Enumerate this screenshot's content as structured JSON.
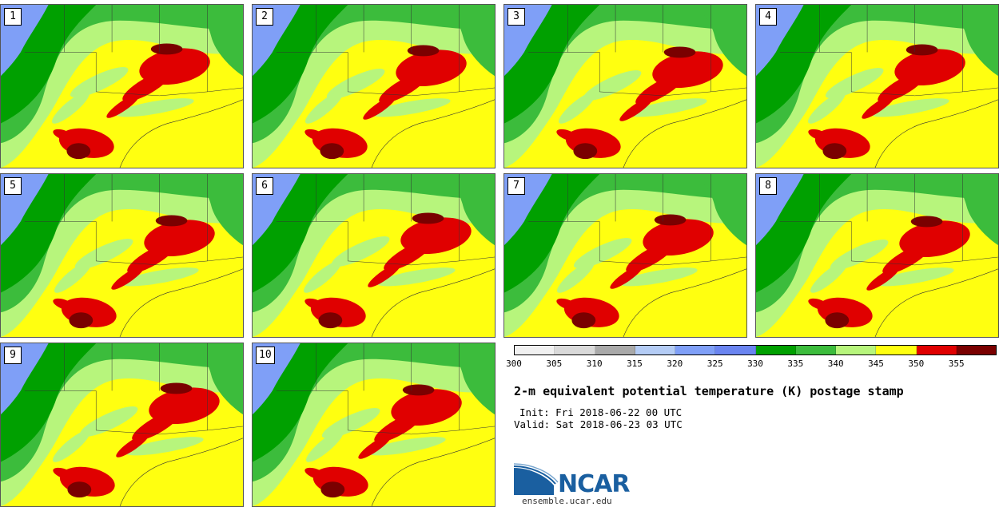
{
  "stamps": [
    {
      "label": "1"
    },
    {
      "label": "2"
    },
    {
      "label": "3"
    },
    {
      "label": "4"
    },
    {
      "label": "5"
    },
    {
      "label": "6"
    },
    {
      "label": "7"
    },
    {
      "label": "8"
    },
    {
      "label": "9"
    },
    {
      "label": "10"
    }
  ],
  "colorbar": {
    "colors": [
      "#f0f0f0",
      "#d9d9d9",
      "#a9a9a9",
      "#b4ccf5",
      "#7f9ff7",
      "#6a84f0",
      "#00a000",
      "#3cbc3c",
      "#b7f57c",
      "#ffff10",
      "#e00000",
      "#7a0000"
    ],
    "tick_labels": [
      "300",
      "305",
      "310",
      "315",
      "320",
      "325",
      "330",
      "335",
      "340",
      "345",
      "350",
      "355"
    ]
  },
  "title": "2-m equivalent potential temperature (K) postage stamp",
  "init": "Init: Fri 2018-06-22 00 UTC",
  "valid": "Valid: Sat 2018-06-23 03 UTC",
  "logo": {
    "text": "NCAR",
    "website": "ensemble.ucar.edu"
  }
}
